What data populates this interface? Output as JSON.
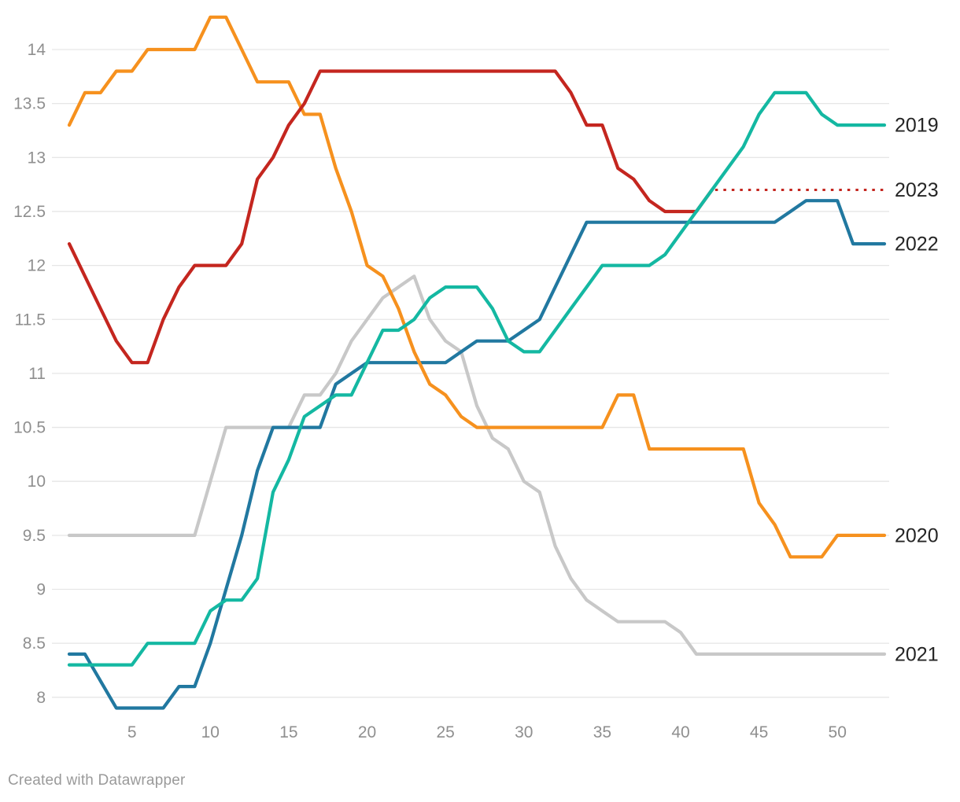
{
  "footer": {
    "text": "Created with Datawrapper"
  },
  "chart_data": {
    "type": "line",
    "title": "",
    "xlabel": "",
    "ylabel": "",
    "x_unit": "week",
    "xlim": [
      1,
      53
    ],
    "ylim": [
      7.9,
      14.3
    ],
    "grid": true,
    "x_ticks": [
      5,
      10,
      15,
      20,
      25,
      30,
      35,
      40,
      45,
      50
    ],
    "y_ticks": [
      8,
      8.5,
      9,
      9.5,
      10,
      10.5,
      11,
      11.5,
      12,
      12.5,
      13,
      13.5,
      14
    ],
    "legend_position": "right-edge-labels",
    "background_color": "#ffffff",
    "gridline_color": "#e6e6e6",
    "tick_label_color": "#8f8f8f",
    "series_label_color": "#252525",
    "draw_order": [
      "2021",
      "2022",
      "2020",
      "2023",
      "2019"
    ],
    "series": [
      {
        "name": "2019",
        "color": "#14b8a2",
        "dashed_tail": true,
        "values": [
          8.3,
          8.3,
          8.3,
          8.3,
          8.3,
          8.5,
          8.5,
          8.5,
          8.5,
          8.8,
          8.9,
          8.9,
          9.1,
          9.9,
          10.2,
          10.6,
          10.7,
          10.8,
          10.8,
          11.1,
          11.4,
          11.4,
          11.5,
          11.7,
          11.8,
          11.8,
          11.8,
          11.6,
          11.3,
          11.2,
          11.2,
          11.4,
          11.6,
          11.8,
          12,
          12,
          12,
          12,
          12.1,
          12.3,
          12.5,
          12.7,
          12.9,
          13.1,
          13.4,
          13.6,
          13.6,
          13.6,
          13.4,
          13.3,
          13.3,
          13.3,
          13.3
        ]
      },
      {
        "name": "2020",
        "color": "#f6911e",
        "dashed_tail": false,
        "values": [
          13.3,
          13.6,
          13.6,
          13.8,
          13.8,
          14,
          14,
          14,
          14,
          14.3,
          14.3,
          14,
          13.7,
          13.7,
          13.7,
          13.4,
          13.4,
          12.9,
          12.5,
          12,
          11.9,
          11.6,
          11.2,
          10.9,
          10.8,
          10.6,
          10.5,
          10.5,
          10.5,
          10.5,
          10.5,
          10.5,
          10.5,
          10.5,
          10.5,
          10.8,
          10.8,
          10.3,
          10.3,
          10.3,
          10.3,
          10.3,
          10.3,
          10.3,
          9.8,
          9.6,
          9.3,
          9.3,
          9.3,
          9.5,
          9.5,
          9.5,
          9.5
        ]
      },
      {
        "name": "2021",
        "color": "#c8c8c8",
        "dashed_tail": true,
        "values": [
          9.5,
          9.5,
          9.5,
          9.5,
          9.5,
          9.5,
          9.5,
          9.5,
          9.5,
          10,
          10.5,
          10.5,
          10.5,
          10.5,
          10.5,
          10.8,
          10.8,
          11,
          11.3,
          11.5,
          11.7,
          11.8,
          11.9,
          11.5,
          11.3,
          11.2,
          10.7,
          10.4,
          10.3,
          10,
          9.9,
          9.4,
          9.1,
          8.9,
          8.8,
          8.7,
          8.7,
          8.7,
          8.7,
          8.6,
          8.4,
          8.4,
          8.4,
          8.4,
          8.4,
          8.4,
          8.4,
          8.4,
          8.4,
          8.4,
          8.4,
          8.4,
          8.4
        ]
      },
      {
        "name": "2022",
        "color": "#2178a0",
        "dashed_tail": true,
        "values": [
          8.4,
          8.4,
          8.15,
          7.9,
          7.9,
          7.9,
          7.9,
          8.1,
          8.1,
          8.5,
          9,
          9.5,
          10.1,
          10.5,
          10.5,
          10.5,
          10.5,
          10.9,
          11,
          11.1,
          11.1,
          11.1,
          11.1,
          11.1,
          11.1,
          11.2,
          11.3,
          11.3,
          11.3,
          11.4,
          11.5,
          11.8,
          12.1,
          12.4,
          12.4,
          12.4,
          12.4,
          12.4,
          12.4,
          12.4,
          12.4,
          12.4,
          12.4,
          12.4,
          12.4,
          12.4,
          12.5,
          12.6,
          12.6,
          12.6,
          12.2,
          12.2,
          12.2
        ]
      },
      {
        "name": "2023",
        "color": "#c4261f",
        "dashed_tail": true,
        "values": [
          12.2,
          11.9,
          11.6,
          11.3,
          11.1,
          11.1,
          11.5,
          11.8,
          12,
          12,
          12,
          12.2,
          12.8,
          13,
          13.3,
          13.5,
          13.8,
          13.8,
          13.8,
          13.8,
          13.8,
          13.8,
          13.8,
          13.8,
          13.8,
          13.8,
          13.8,
          13.8,
          13.8,
          13.8,
          13.8,
          13.8,
          13.6,
          13.3,
          13.3,
          12.9,
          12.8,
          12.6,
          12.5,
          12.5,
          12.5,
          12.7
        ]
      }
    ]
  }
}
